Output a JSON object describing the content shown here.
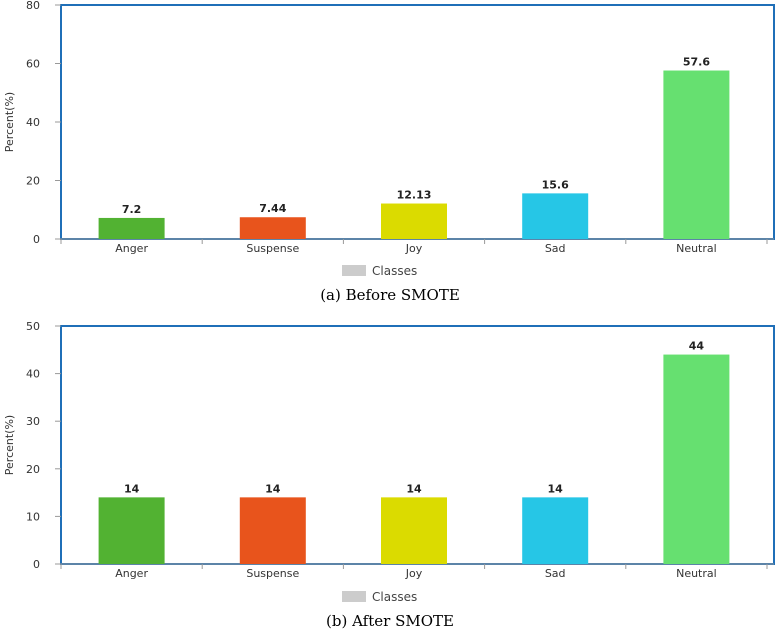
{
  "chart_data": [
    {
      "type": "bar",
      "caption": "(a) Before SMOTE",
      "ylabel": "Percent(%)",
      "categories": [
        "Anger",
        "Suspense",
        "Joy",
        "Sad",
        "Neutral"
      ],
      "values": [
        7.2,
        7.44,
        12.13,
        15.6,
        57.6
      ],
      "data_labels": [
        "7.2",
        "7.44",
        "12.13",
        "15.6",
        "57.6"
      ],
      "colors": [
        "#52b232",
        "#e8541c",
        "#dbdb00",
        "#26c6e6",
        "#66e070"
      ],
      "ylim": [
        0,
        80
      ],
      "yticks": [
        0,
        20,
        40,
        60,
        80
      ],
      "legend": "Classes",
      "legend_position": "bottom",
      "grid": false
    },
    {
      "type": "bar",
      "caption": "(b) After SMOTE",
      "ylabel": "Percent(%)",
      "categories": [
        "Anger",
        "Suspense",
        "Joy",
        "Sad",
        "Neutral"
      ],
      "values": [
        14,
        14,
        14,
        14,
        44
      ],
      "data_labels": [
        "14",
        "14",
        "14",
        "14",
        "44"
      ],
      "colors": [
        "#52b232",
        "#e8541c",
        "#dbdb00",
        "#26c6e6",
        "#66e070"
      ],
      "ylim": [
        0,
        50
      ],
      "yticks": [
        0,
        10,
        20,
        30,
        40,
        50
      ],
      "legend": "Classes",
      "legend_position": "bottom",
      "grid": false
    }
  ],
  "colors": {
    "frame": "#1f6fb8",
    "axis": "#999999",
    "legend_swatch": "#cccccc"
  }
}
